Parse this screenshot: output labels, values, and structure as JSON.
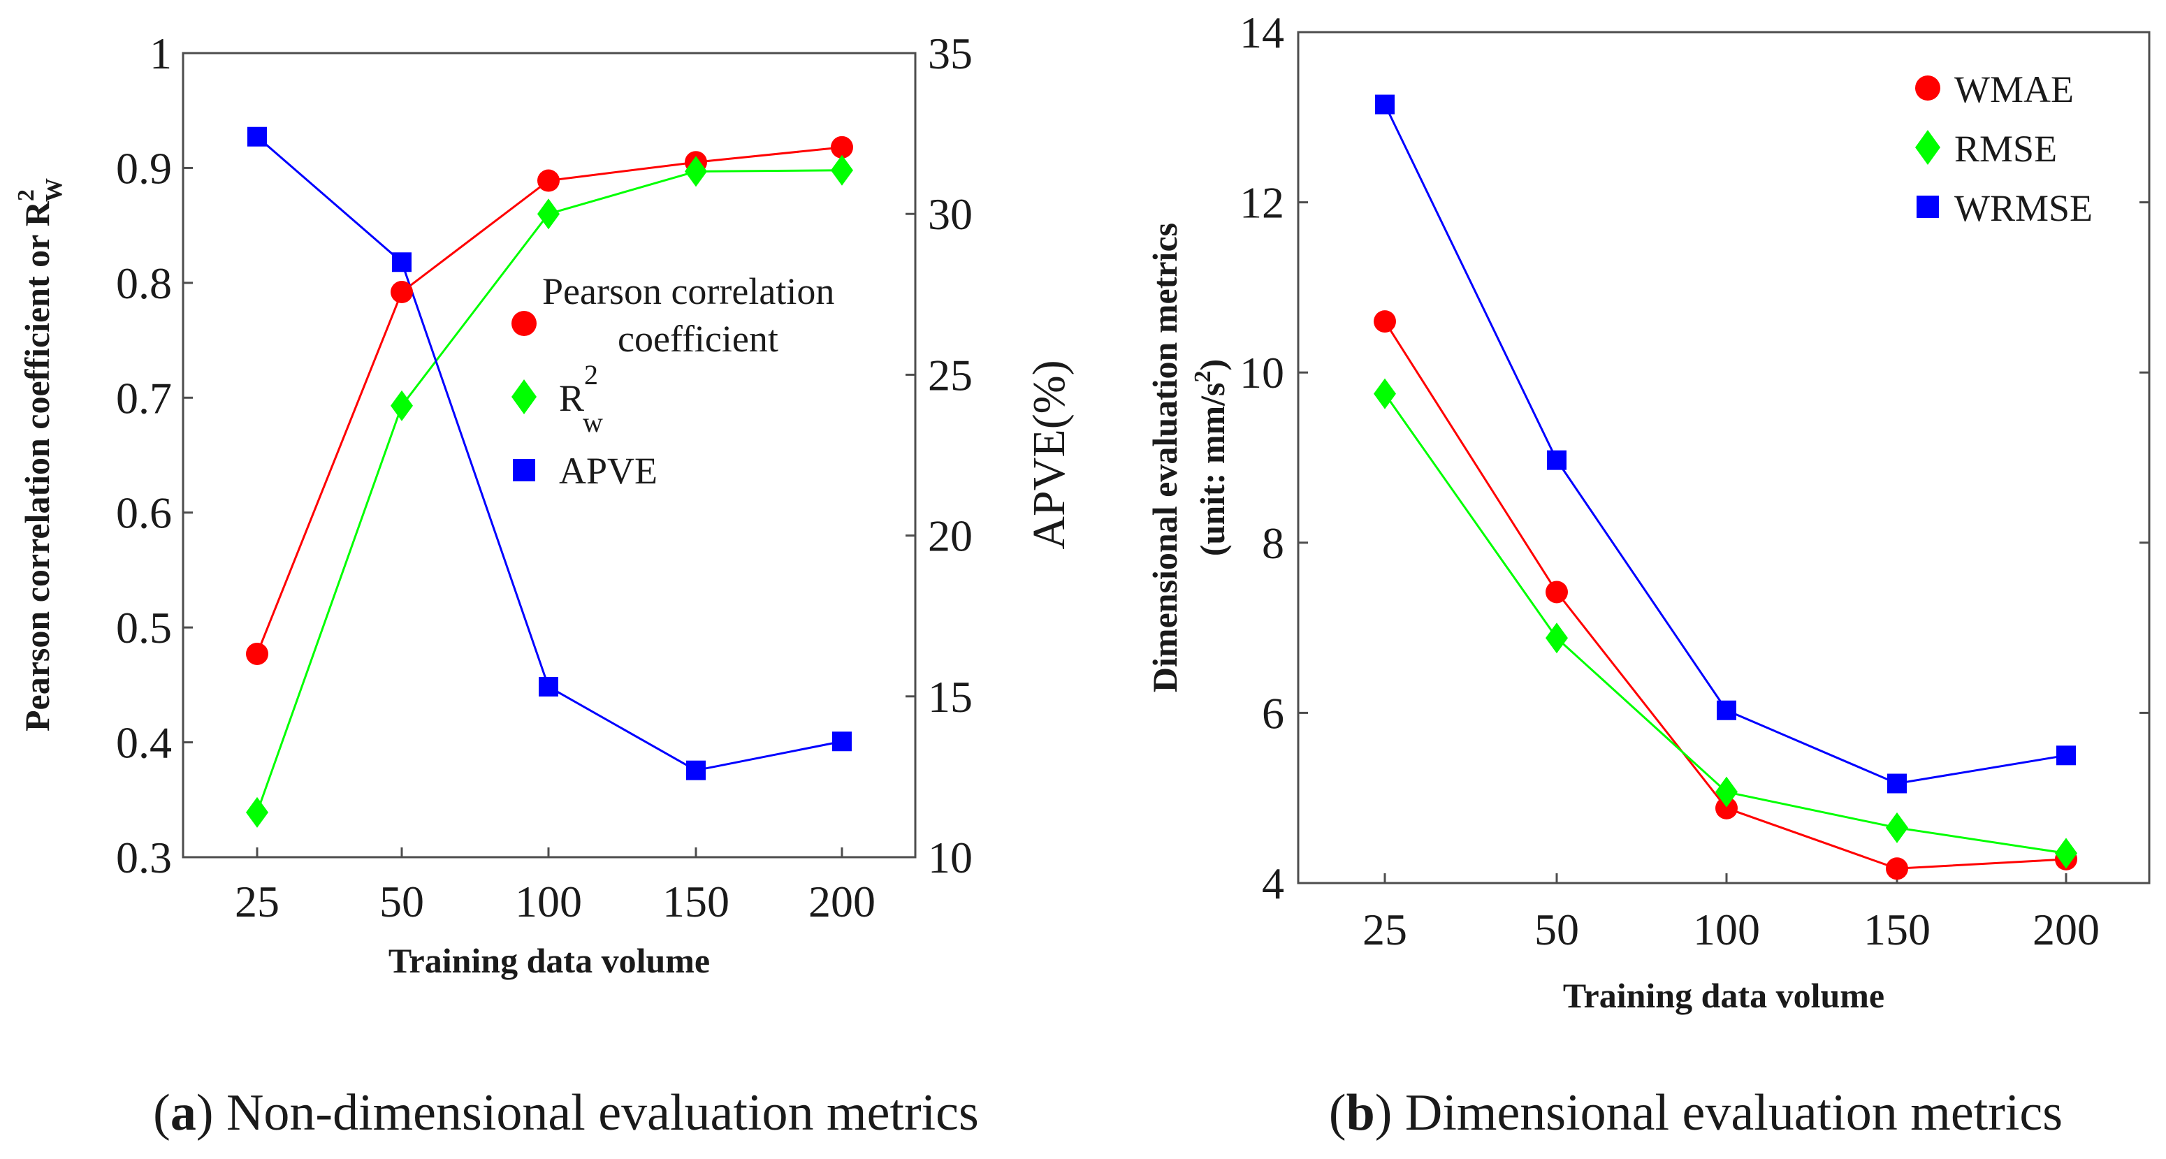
{
  "chart_data": [
    {
      "type": "line",
      "panel_label": "a",
      "caption": "Non-dimensional evaluation metrics",
      "xlabel": "Training data volume",
      "categories": [
        "25",
        "50",
        "100",
        "150",
        "200"
      ],
      "ylabel_left": "Pearson correlation coefficient or R",
      "ylabel_left_super": "2",
      "ylabel_left_sub": "W",
      "ylabel_right": "APVE(%)",
      "ylim_left": [
        0.3,
        1.0
      ],
      "yticks_left": [
        "0.3",
        "0.4",
        "0.5",
        "0.6",
        "0.7",
        "0.8",
        "0.9",
        "1"
      ],
      "ylim_right": [
        10,
        35
      ],
      "yticks_right": [
        "10",
        "15",
        "20",
        "25",
        "30",
        "35"
      ],
      "legend_position": "center-right",
      "series": [
        {
          "name_line1": "Pearson correlation",
          "name_line2": "coefficient",
          "axis": "left",
          "marker": "circle",
          "color": "#ff0000",
          "values": [
            0.477,
            0.792,
            0.889,
            0.905,
            0.918
          ]
        },
        {
          "name": "R",
          "name_super": "2",
          "name_sub": "w",
          "axis": "left",
          "marker": "diamond",
          "color": "#00ff00",
          "values": [
            0.339,
            0.693,
            0.86,
            0.897,
            0.898
          ]
        },
        {
          "name": "APVE",
          "axis": "right",
          "marker": "square",
          "color": "#0000ff",
          "values": [
            32.4,
            28.5,
            15.3,
            12.7,
            13.6
          ]
        }
      ]
    },
    {
      "type": "line",
      "panel_label": "b",
      "caption": "Dimensional evaluation metrics",
      "xlabel": "Training data volume",
      "categories": [
        "25",
        "50",
        "100",
        "150",
        "200"
      ],
      "ylabel_line1": "Dimensional evaluation metrics",
      "ylabel_line2": "(unit: mm/s",
      "ylabel_line2_super": "2",
      "ylabel_line2_end": ")",
      "ylim": [
        4,
        14
      ],
      "yticks": [
        "4",
        "6",
        "8",
        "10",
        "12",
        "14"
      ],
      "legend_position": "top-right",
      "series": [
        {
          "name": "WMAE",
          "marker": "circle",
          "color": "#ff0000",
          "values": [
            10.6,
            7.42,
            4.88,
            4.17,
            4.28
          ]
        },
        {
          "name": "RMSE",
          "marker": "diamond",
          "color": "#00ff00",
          "values": [
            9.75,
            6.88,
            5.07,
            4.65,
            4.35
          ]
        },
        {
          "name": "WRMSE",
          "marker": "square",
          "color": "#0000ff",
          "values": [
            13.15,
            8.97,
            6.03,
            5.17,
            5.5
          ]
        }
      ]
    }
  ]
}
